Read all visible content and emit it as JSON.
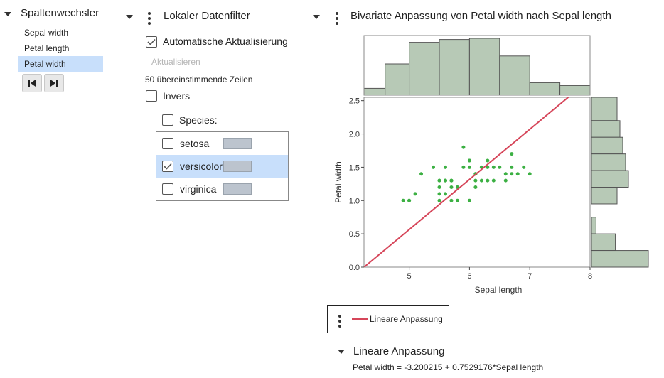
{
  "column_switcher": {
    "title": "Spaltenwechsler",
    "items": [
      {
        "label": "Sepal width",
        "selected": false
      },
      {
        "label": "Petal length",
        "selected": false
      },
      {
        "label": "Petal width",
        "selected": true
      }
    ]
  },
  "data_filter": {
    "title": "Lokaler Datenfilter",
    "auto_update_label": "Automatische Aktualisierung",
    "auto_update_checked": true,
    "update_button": "Aktualisieren",
    "matching_rows": "50 übereinstimmende Zeilen",
    "invert_label": "Invers",
    "invert_checked": false,
    "species_label": "Species:",
    "species": [
      {
        "label": "setosa",
        "checked": false
      },
      {
        "label": "versicolor",
        "checked": true
      },
      {
        "label": "virginica",
        "checked": false
      }
    ]
  },
  "bivariate": {
    "title": "Bivariate Anpassung von Petal width nach Sepal length",
    "legend_label": "Lineare Anpassung",
    "fit_section_title": "Lineare Anpassung",
    "equation": "Petal width = -3.200215 + 0.7529176*Sepal length"
  },
  "colors": {
    "points": "#3cb043",
    "fit_line": "#d6465a",
    "histogram_fill": "#b7c9b6",
    "selection": "#c8dffb"
  },
  "chart_data": {
    "type": "scatter",
    "xlabel": "Sepal length",
    "ylabel": "Petal width",
    "xlim": [
      4.25,
      8.0
    ],
    "ylim": [
      0.0,
      2.55
    ],
    "x_ticks": [
      "5",
      "6",
      "7",
      "8"
    ],
    "y_ticks": [
      "0.0",
      "0.5",
      "1.0",
      "1.5",
      "2.0",
      "2.5"
    ],
    "points": [
      [
        7.0,
        1.4
      ],
      [
        6.4,
        1.5
      ],
      [
        6.9,
        1.5
      ],
      [
        5.5,
        1.3
      ],
      [
        6.5,
        1.5
      ],
      [
        5.7,
        1.3
      ],
      [
        6.3,
        1.6
      ],
      [
        4.9,
        1.0
      ],
      [
        6.6,
        1.3
      ],
      [
        5.2,
        1.4
      ],
      [
        5.0,
        1.0
      ],
      [
        5.9,
        1.5
      ],
      [
        6.0,
        1.0
      ],
      [
        6.1,
        1.4
      ],
      [
        5.6,
        1.3
      ],
      [
        6.7,
        1.4
      ],
      [
        5.6,
        1.5
      ],
      [
        5.8,
        1.0
      ],
      [
        6.2,
        1.5
      ],
      [
        5.6,
        1.1
      ],
      [
        5.9,
        1.8
      ],
      [
        6.1,
        1.3
      ],
      [
        6.3,
        1.5
      ],
      [
        6.1,
        1.2
      ],
      [
        6.4,
        1.3
      ],
      [
        6.6,
        1.4
      ],
      [
        6.8,
        1.4
      ],
      [
        6.7,
        1.7
      ],
      [
        6.0,
        1.5
      ],
      [
        5.7,
        1.0
      ],
      [
        5.5,
        1.1
      ],
      [
        5.5,
        1.0
      ],
      [
        5.8,
        1.2
      ],
      [
        6.0,
        1.6
      ],
      [
        5.4,
        1.5
      ],
      [
        6.0,
        1.6
      ],
      [
        6.7,
        1.5
      ],
      [
        6.3,
        1.3
      ],
      [
        5.6,
        1.3
      ],
      [
        5.5,
        1.3
      ],
      [
        5.5,
        1.2
      ],
      [
        6.1,
        1.4
      ],
      [
        5.8,
        1.2
      ],
      [
        5.0,
        1.0
      ],
      [
        5.6,
        1.3
      ],
      [
        5.7,
        1.2
      ],
      [
        5.7,
        1.3
      ],
      [
        6.2,
        1.3
      ],
      [
        5.1,
        1.1
      ],
      [
        5.7,
        1.3
      ]
    ],
    "fit": {
      "intercept": -3.200215,
      "slope": 0.7529176
    },
    "top_histogram": {
      "bin_edges": [
        4.25,
        4.6,
        5.0,
        5.5,
        6.0,
        6.5,
        7.0,
        7.5,
        8.0
      ],
      "heights": [
        0.12,
        0.55,
        0.93,
        0.98,
        1.0,
        0.69,
        0.22,
        0.17
      ]
    },
    "right_histogram": {
      "bins": [
        {
          "lo": 2.2,
          "hi": 2.55,
          "value": 0.45
        },
        {
          "lo": 1.95,
          "hi": 2.2,
          "value": 0.5
        },
        {
          "lo": 1.7,
          "hi": 1.95,
          "value": 0.55
        },
        {
          "lo": 1.45,
          "hi": 1.7,
          "value": 0.6
        },
        {
          "lo": 1.2,
          "hi": 1.45,
          "value": 0.65
        },
        {
          "lo": 0.95,
          "hi": 1.2,
          "value": 0.45
        },
        {
          "lo": 0.5,
          "hi": 0.75,
          "value": 0.08
        },
        {
          "lo": 0.25,
          "hi": 0.5,
          "value": 0.42
        },
        {
          "lo": 0.0,
          "hi": 0.25,
          "value": 1.0
        }
      ]
    }
  }
}
